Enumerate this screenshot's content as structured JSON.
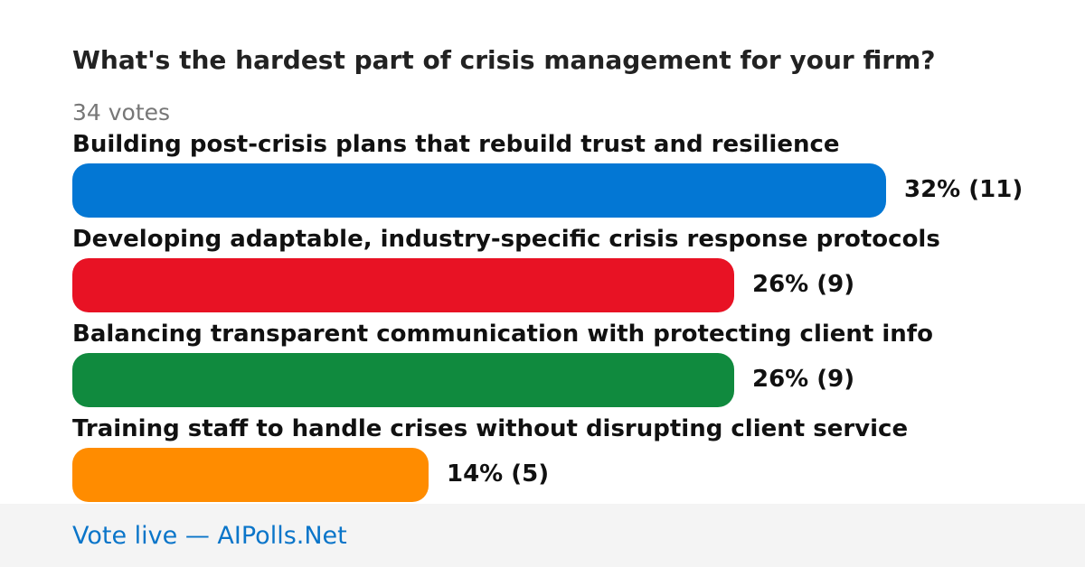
{
  "poll": {
    "question": "What's the hardest part of crisis management for your firm?",
    "votes_label": "34 votes"
  },
  "chart_data": {
    "type": "bar",
    "orientation": "horizontal",
    "categories": [
      "Building post-crisis plans that rebuild trust and resilience",
      "Developing adaptable, industry-specific crisis response protocols",
      "Balancing transparent communication with protecting client info",
      "Training staff to handle crises without disrupting client service"
    ],
    "values": [
      32,
      26,
      26,
      14
    ],
    "counts": [
      11,
      9,
      9,
      5
    ],
    "labels": [
      "32% (11)",
      "26% (9)",
      "26% (9)",
      "14% (5)"
    ],
    "colors": [
      "#0377d4",
      "#e81224",
      "#108a3e",
      "#ff8c00"
    ],
    "unit": "%",
    "total_votes": 34,
    "title": "What's the hardest part of crisis management for your firm?"
  },
  "footer": {
    "text": "Vote live — AIPolls.Net"
  }
}
